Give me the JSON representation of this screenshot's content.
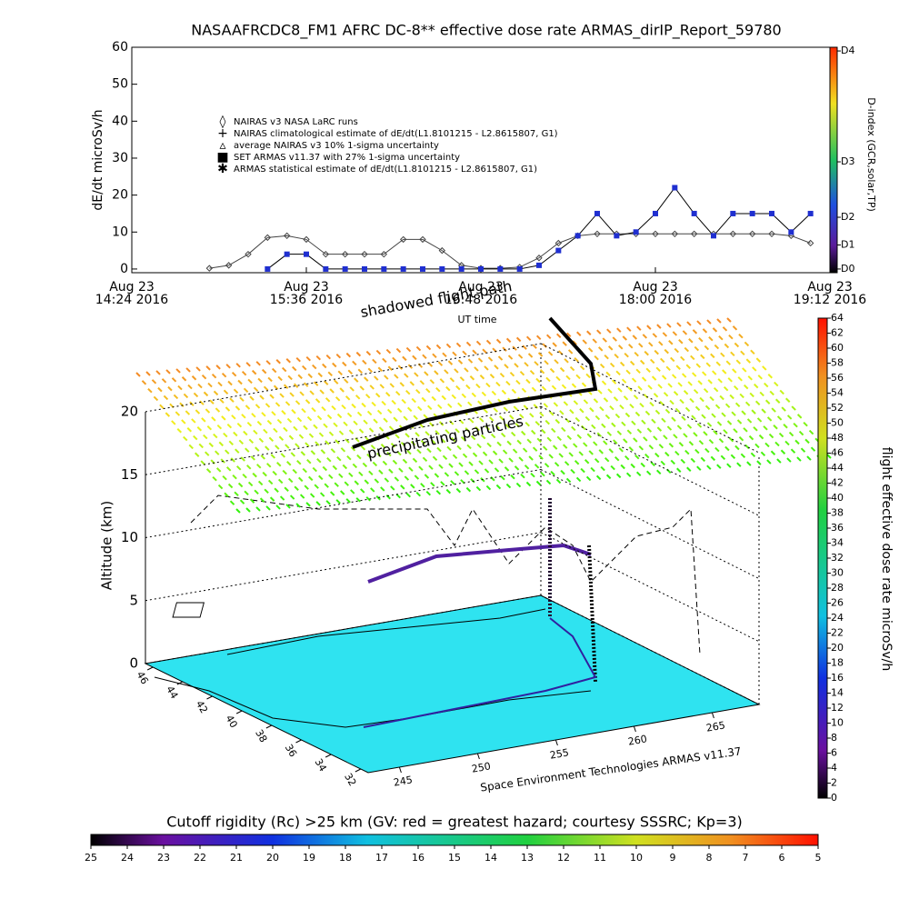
{
  "chart_data": [
    {
      "type": "line",
      "title": "NASAAFRCDC8_FM1 AFRC DC-8** effective dose rate ARMAS_dirIP_Report_59780",
      "ylabel": "dE/dt microSv/h",
      "xlabel": "UT time",
      "xlim": [
        0,
        288
      ],
      "ylim": [
        -1,
        60
      ],
      "yticks": [
        0,
        10,
        20,
        30,
        40,
        50,
        60
      ],
      "xticks": [
        {
          "value": 0,
          "label": [
            "Aug 23",
            "14:24 2016"
          ]
        },
        {
          "value": 72,
          "label": [
            "Aug 23",
            "15:36 2016"
          ]
        },
        {
          "value": 144,
          "label": [
            "Aug 23",
            "16:48 2016"
          ]
        },
        {
          "value": 216,
          "label": [
            "Aug 23",
            "18:00 2016"
          ]
        },
        {
          "value": 288,
          "label": [
            "Aug 23",
            "19:12 2016"
          ]
        }
      ],
      "y2label": "D-index (GCR,solar,TP)",
      "y2lim": [
        -1,
        60
      ],
      "y2ticks": [
        {
          "value": 0,
          "label": "D0"
        },
        {
          "value": 6.5,
          "label": "D1"
        },
        {
          "value": 14,
          "label": "D2"
        },
        {
          "value": 29,
          "label": "D3"
        },
        {
          "value": 59,
          "label": "D4"
        }
      ],
      "legend_notes": [
        "NAIRAS climatological estimate of dE/dt(L1.8101215 - L2.8615807, G1)",
        "average NAIRAS v3 10% 1-sigma uncertainty",
        "ARMAS statistical estimate of dE/dt(L1.8101215 - L2.8615807, G1)"
      ],
      "x": [
        0,
        8,
        16,
        24,
        32,
        40,
        48,
        56,
        64,
        72,
        80,
        88,
        96,
        104,
        112,
        120,
        128,
        136,
        144,
        152,
        160,
        168,
        176,
        184,
        192,
        200,
        208,
        216,
        224,
        232,
        240,
        248,
        256,
        264,
        272,
        280,
        288
      ],
      "series": [
        {
          "name": "NAIRAS v3 NASA LaRC runs",
          "color": "#444444",
          "values": [
            null,
            null,
            null,
            null,
            0.2,
            1,
            4,
            8.5,
            9,
            8,
            4,
            4,
            4,
            4,
            8,
            8,
            5,
            1,
            0.2,
            0.2,
            0.5,
            3,
            7,
            9,
            9.5,
            9.5,
            9.5,
            9.5,
            9.5,
            9.5,
            9.5,
            9.5,
            9.5,
            9.5,
            9,
            7,
            null
          ]
        },
        {
          "name": "SET ARMAS v11.37 with 27% 1-sigma uncertainty",
          "color": "#1f2fd0",
          "values": [
            null,
            null,
            null,
            null,
            null,
            null,
            null,
            0,
            4,
            4,
            0,
            0,
            0,
            0,
            0,
            0,
            0,
            0,
            0,
            0,
            0,
            1,
            5,
            9,
            15,
            9,
            10,
            15,
            22,
            15,
            9,
            15,
            15,
            15,
            10,
            15,
            null
          ]
        }
      ]
    },
    {
      "type": "surface",
      "zlabel": "Altitude (km)",
      "zlim": [
        0,
        20
      ],
      "zticks": [
        0,
        5,
        10,
        15,
        20
      ],
      "latlim": [
        46.5,
        31.5
      ],
      "latticks": [
        46,
        44,
        42,
        40,
        38,
        36,
        34,
        32
      ],
      "lonlim": [
        243,
        268
      ],
      "lonticks": [
        245,
        250,
        255,
        260,
        265
      ],
      "annotations": [
        "shadowed flight path",
        "precipitating particles"
      ],
      "credit": "Space Environment Technologies ARMAS v11.37"
    },
    {
      "type": "colorbar",
      "label": "flight effective dose rate microSv/h",
      "lim": [
        0,
        64
      ],
      "ticks": [
        0,
        2,
        4,
        6,
        8,
        10,
        12,
        14,
        16,
        18,
        20,
        22,
        24,
        26,
        28,
        30,
        32,
        34,
        36,
        38,
        40,
        42,
        44,
        46,
        48,
        50,
        52,
        54,
        56,
        58,
        60,
        62,
        64
      ]
    },
    {
      "type": "colorbar",
      "title": "Cutoff rigidity (Rc) >25 km (GV: red = greatest hazard; courtesy SSSRC; Kp=3)",
      "lim": [
        25,
        5
      ],
      "ticks": [
        25,
        24,
        23,
        22,
        21,
        20,
        19,
        18,
        17,
        16,
        15,
        14,
        13,
        12,
        11,
        10,
        9,
        8,
        7,
        6,
        5
      ]
    }
  ]
}
